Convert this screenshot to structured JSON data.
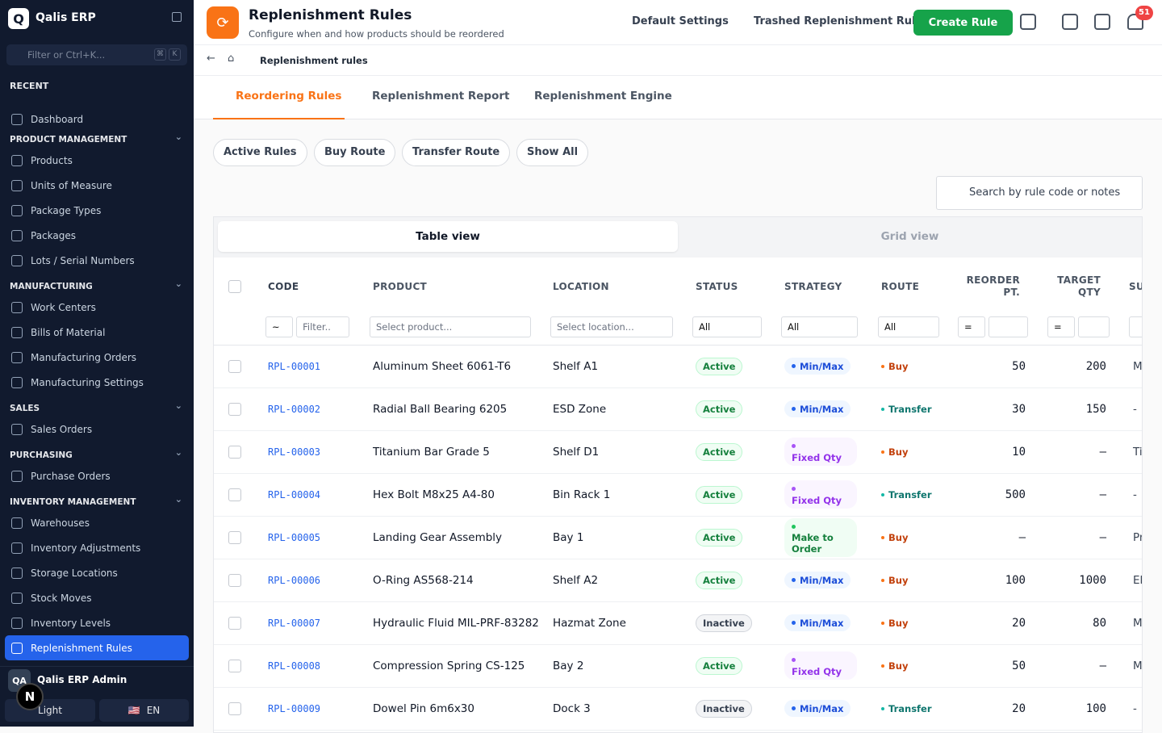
{
  "sidebar": {
    "logo": "Q",
    "brand": "Qalis ERP",
    "filter": "Filter or Ctrl+K...",
    "shortcut": [
      "⌘",
      "K"
    ],
    "recent": "RECENT",
    "dashboard": "Dashboard",
    "sections": [
      {
        "title": "PRODUCT MANAGEMENT",
        "items": [
          "Products",
          "Units of Measure",
          "Package Types",
          "Packages",
          "Lots / Serial Numbers"
        ]
      },
      {
        "title": "MANUFACTURING",
        "items": [
          "Work Centers",
          "Bills of Material",
          "Manufacturing Orders",
          "Manufacturing Settings"
        ]
      },
      {
        "title": "SALES",
        "items": [
          "Sales Orders"
        ]
      },
      {
        "title": "PURCHASING",
        "items": [
          "Purchase Orders"
        ]
      },
      {
        "title": "INVENTORY MANAGEMENT",
        "items": [
          "Warehouses",
          "Inventory Adjustments",
          "Storage Locations",
          "Stock Moves",
          "Inventory Levels",
          "Replenishment Rules"
        ]
      }
    ],
    "user": {
      "initials": "QA",
      "name": "Qalis ERP Admin"
    },
    "theme": "Light",
    "language": "EN",
    "flag": "🇺🇸",
    "fab": "N"
  },
  "header": {
    "title": "Replenishment Rules",
    "subtitle": "Configure when and how products should be reordered",
    "actions": [
      "Default Settings",
      "Trashed Replenishment Rules"
    ],
    "create": "Create Rule",
    "notifications": 51
  },
  "breadcrumb": "Replenishment rules",
  "tabs": [
    "Reordering Rules",
    "Replenishment Report",
    "Replenishment Engine"
  ],
  "filters": [
    "Active Rules",
    "Buy Route",
    "Transfer Route",
    "Show All"
  ],
  "search": "Search by rule code or notes",
  "views": [
    "Table view",
    "Grid view"
  ],
  "table": {
    "columns": [
      "CODE",
      "PRODUCT",
      "LOCATION",
      "STATUS",
      "STRATEGY",
      "ROUTE",
      "REORDER PT.",
      "TARGET QTY",
      "SU"
    ],
    "filters": {
      "operator": "~",
      "code": "Filter..",
      "product": "Select product...",
      "location": "Select location...",
      "status": "All",
      "strategy": "All",
      "route": "All",
      "reorder_op": "=",
      "target_op": "="
    },
    "rows": [
      [
        "RPL-00001",
        "Aluminum Sheet 6061-T6",
        "Shelf A1",
        "Active",
        "Min/Max",
        "Buy",
        50,
        200,
        "M"
      ],
      [
        "RPL-00002",
        "Radial Ball Bearing 6205",
        "ESD Zone",
        "Active",
        "Min/Max",
        "Transfer",
        30,
        150,
        "-"
      ],
      [
        "RPL-00003",
        "Titanium Bar Grade 5",
        "Shelf D1",
        "Active",
        "Fixed Qty",
        "Buy",
        10,
        "–",
        "Ti"
      ],
      [
        "RPL-00004",
        "Hex Bolt M8x25 A4-80",
        "Bin Rack 1",
        "Active",
        "Fixed Qty",
        "Transfer",
        500,
        "–",
        "-"
      ],
      [
        "RPL-00005",
        "Landing Gear Assembly",
        "Bay 1",
        "Active",
        "Make to Order",
        "Buy",
        "–",
        "–",
        "Pr"
      ],
      [
        "RPL-00006",
        "O-Ring AS568-214",
        "Shelf A2",
        "Active",
        "Min/Max",
        "Buy",
        100,
        1000,
        "El"
      ],
      [
        "RPL-00007",
        "Hydraulic Fluid MIL-PRF-83282",
        "Hazmat Zone",
        "Inactive",
        "Min/Max",
        "Buy",
        20,
        80,
        "M"
      ],
      [
        "RPL-00008",
        "Compression Spring CS-125",
        "Bay 2",
        "Active",
        "Fixed Qty",
        "Buy",
        50,
        "–",
        "M"
      ],
      [
        "RPL-00009",
        "Dowel Pin 6m6x30",
        "Dock 3",
        "Inactive",
        "Min/Max",
        "Transfer",
        20,
        100,
        "-"
      ]
    ]
  }
}
